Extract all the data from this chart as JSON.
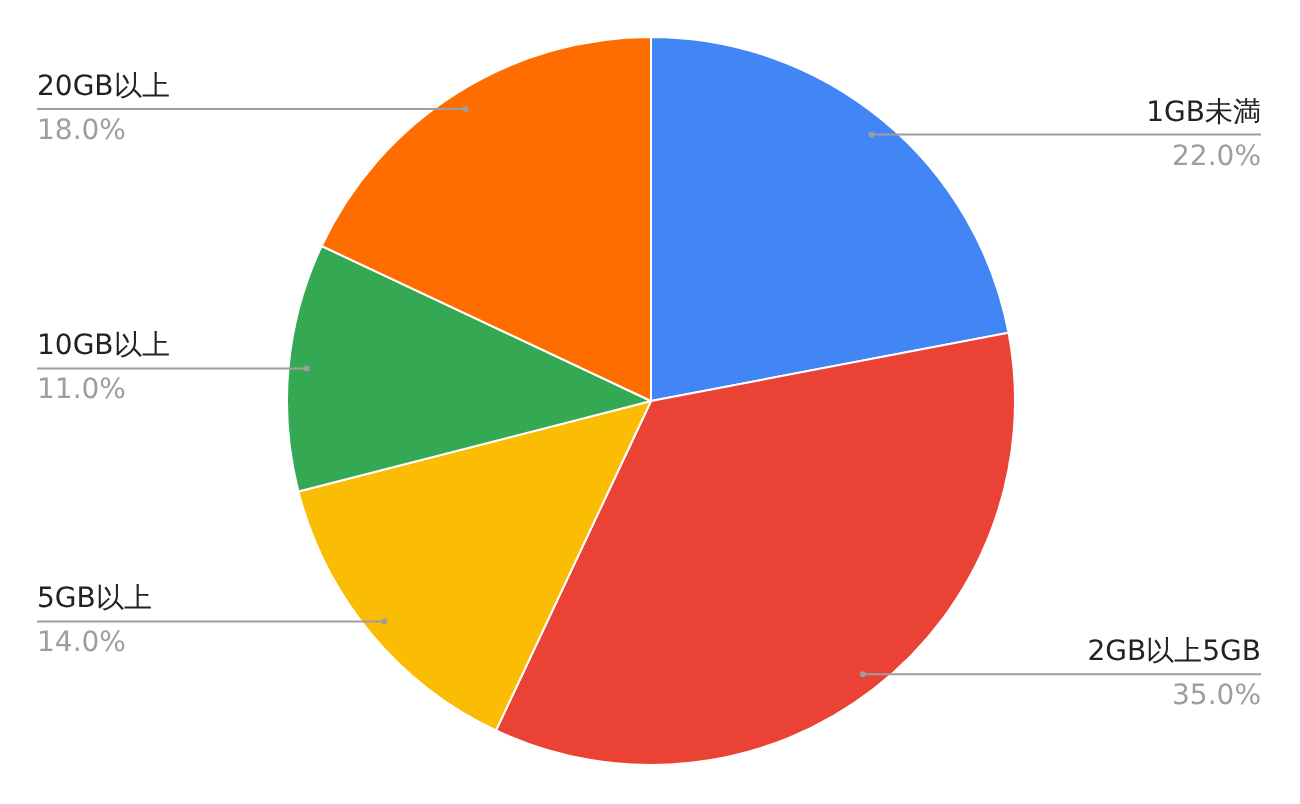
{
  "chart_data": {
    "type": "pie",
    "categories": [
      "1GB未満",
      "2GB以上5GB",
      "5GB以上",
      "10GB以上",
      "20GB以上"
    ],
    "values": [
      22,
      35,
      14,
      11,
      18
    ],
    "value_labels": [
      "22.0%",
      "35.0%",
      "14.0%",
      "11.0%",
      "18.0%"
    ],
    "colors": [
      "#4285f4",
      "#ea4335",
      "#fbbc04",
      "#34a853",
      "#ff6d01"
    ]
  }
}
